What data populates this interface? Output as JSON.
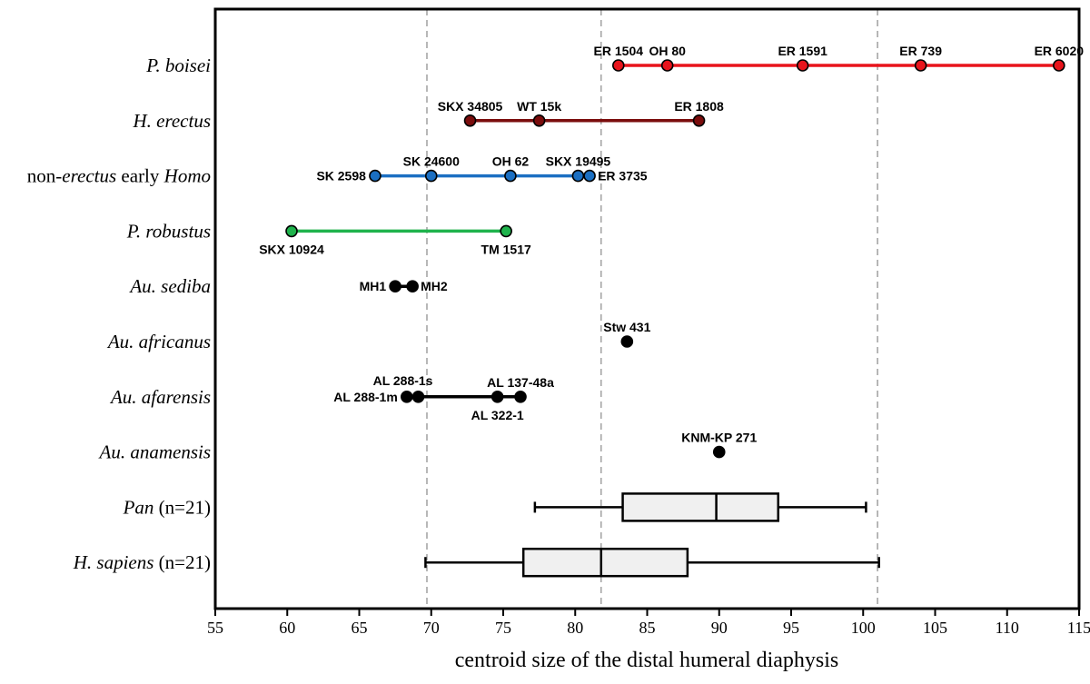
{
  "chart_data": {
    "type": "scatter",
    "xlabel": "centroid size of the distal humeral diaphysis",
    "xlim": [
      55,
      115
    ],
    "xticks": [
      55,
      60,
      65,
      70,
      75,
      80,
      85,
      90,
      95,
      100,
      105,
      110,
      115
    ],
    "reference_lines": [
      69.7,
      81.8,
      101.0
    ],
    "grid": false,
    "categories": [
      {
        "id": "p-boisei",
        "label": [
          {
            "t": "P. boisei",
            "i": true
          }
        ]
      },
      {
        "id": "h-erectus",
        "label": [
          {
            "t": "H. erectus",
            "i": true
          }
        ]
      },
      {
        "id": "non-erectus-homo",
        "label": [
          {
            "t": "non-",
            "i": false
          },
          {
            "t": "erectus",
            "i": true
          },
          {
            "t": " early ",
            "i": false
          },
          {
            "t": "Homo",
            "i": true
          }
        ]
      },
      {
        "id": "p-robustus",
        "label": [
          {
            "t": "P. robustus",
            "i": true
          }
        ]
      },
      {
        "id": "au-sediba",
        "label": [
          {
            "t": "Au. sediba",
            "i": true
          }
        ]
      },
      {
        "id": "au-africanus",
        "label": [
          {
            "t": "Au. africanus",
            "i": true
          }
        ]
      },
      {
        "id": "au-afarensis",
        "label": [
          {
            "t": "Au. afarensis",
            "i": true
          }
        ]
      },
      {
        "id": "au-anamensis",
        "label": [
          {
            "t": "Au. anamensis",
            "i": true
          }
        ]
      },
      {
        "id": "pan",
        "label": [
          {
            "t": "Pan",
            "i": true
          },
          {
            "t": " (n=21)",
            "i": false
          }
        ]
      },
      {
        "id": "h-sapiens",
        "label": [
          {
            "t": "H. sapiens",
            "i": true
          },
          {
            "t": " (n=21)",
            "i": false
          }
        ]
      }
    ],
    "series": [
      {
        "category": "P. boisei",
        "color": "#e8141c",
        "line": true,
        "points": [
          {
            "x": 83.0,
            "label": "ER 1504",
            "pos": "above"
          },
          {
            "x": 86.4,
            "label": "OH 80",
            "pos": "above"
          },
          {
            "x": 95.8,
            "label": "ER 1591",
            "pos": "above"
          },
          {
            "x": 104.0,
            "label": "ER 739",
            "pos": "above"
          },
          {
            "x": 113.6,
            "label": "ER 6020",
            "pos": "above"
          }
        ]
      },
      {
        "category": "H. erectus",
        "color": "#7b0d0d",
        "line": true,
        "points": [
          {
            "x": 72.7,
            "label": "SKX 34805",
            "pos": "above"
          },
          {
            "x": 77.5,
            "label": "WT 15k",
            "pos": "above"
          },
          {
            "x": 88.6,
            "label": "ER 1808",
            "pos": "above"
          }
        ]
      },
      {
        "category": "non-erectus early Homo",
        "color": "#1b6fc2",
        "line": true,
        "points": [
          {
            "x": 66.1,
            "label": "SK 2598",
            "pos": "left"
          },
          {
            "x": 70.0,
            "label": "SK 24600",
            "pos": "above"
          },
          {
            "x": 75.5,
            "label": "OH 62",
            "pos": "above"
          },
          {
            "x": 80.2,
            "label": "SKX 19495",
            "pos": "above"
          },
          {
            "x": 81.0,
            "label": "ER 3735",
            "pos": "right"
          }
        ]
      },
      {
        "category": "P. robustus",
        "color": "#1fb34c",
        "line": true,
        "points": [
          {
            "x": 60.3,
            "label": "SKX 10924",
            "pos": "below"
          },
          {
            "x": 75.2,
            "label": "TM 1517",
            "pos": "below"
          }
        ]
      },
      {
        "category": "Au. sediba",
        "color": "#000000",
        "line": true,
        "points": [
          {
            "x": 67.5,
            "label": "MH1",
            "pos": "left"
          },
          {
            "x": 68.7,
            "label": "MH2",
            "pos": "right"
          }
        ]
      },
      {
        "category": "Au. africanus",
        "color": "#000000",
        "line": false,
        "points": [
          {
            "x": 83.6,
            "label": "Stw 431",
            "pos": "above"
          }
        ]
      },
      {
        "category": "Au. afarensis",
        "color": "#000000",
        "line": true,
        "points": [
          {
            "x": 68.3,
            "label": "AL 288-1m",
            "pos": "left"
          },
          {
            "x": 69.1,
            "label": "AL 288-1s",
            "pos": "aboveleft"
          },
          {
            "x": 74.6,
            "label": "AL 322-1",
            "pos": "below"
          },
          {
            "x": 76.2,
            "label": "AL 137-48a",
            "pos": "above"
          }
        ]
      },
      {
        "category": "Au. anamensis",
        "color": "#000000",
        "line": false,
        "points": [
          {
            "x": 90.0,
            "label": "KNM-KP 271",
            "pos": "above"
          }
        ]
      }
    ],
    "boxplots": [
      {
        "category": "Pan (n=21)",
        "min": 77.2,
        "q1": 83.3,
        "median": 89.8,
        "q3": 94.1,
        "max": 100.2
      },
      {
        "category": "H. sapiens (n=21)",
        "min": 69.6,
        "q1": 76.4,
        "median": 81.8,
        "q3": 87.8,
        "max": 101.1
      }
    ]
  }
}
